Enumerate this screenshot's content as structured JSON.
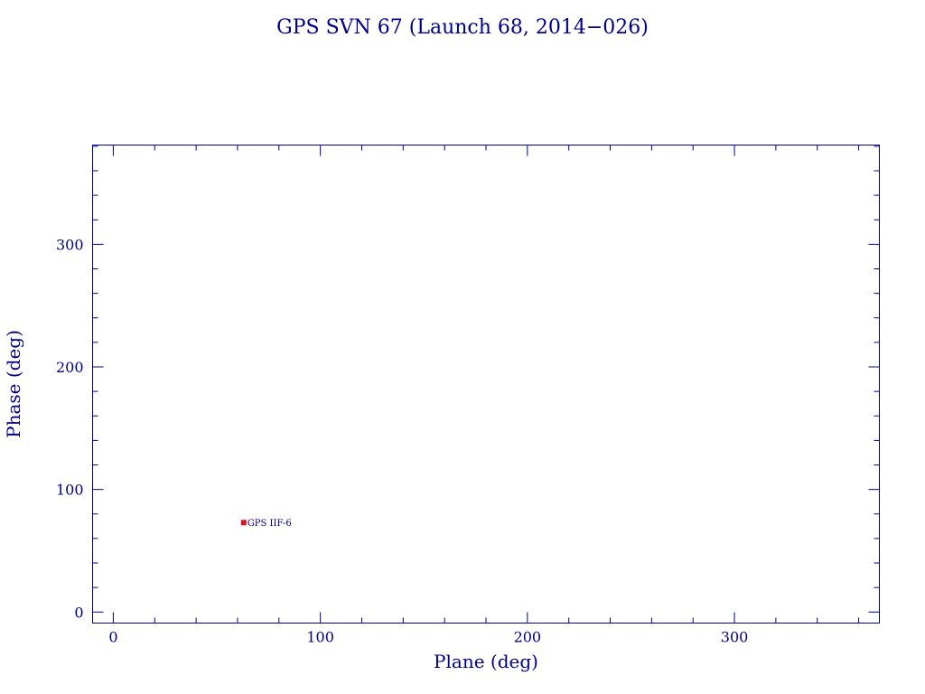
{
  "chart_data": {
    "type": "scatter",
    "title": "GPS SVN 67 (Launch 68, 2014−026)",
    "xlabel": "Plane (deg)",
    "ylabel": "Phase (deg)",
    "xlim": [
      -10,
      370
    ],
    "ylim": [
      -9,
      381
    ],
    "xticks": [
      0,
      100,
      200,
      300
    ],
    "xtick_labels": [
      "0",
      "100",
      "200",
      "300"
    ],
    "yticks": [
      0,
      100,
      200,
      300
    ],
    "ytick_labels": [
      "0",
      "100",
      "200",
      "300"
    ],
    "x_minor_step": 20,
    "y_minor_step": 20,
    "grid": false,
    "points": [
      {
        "x": 63,
        "y": 73,
        "label": "GPS IIF-6"
      }
    ],
    "colors": {
      "axis": "#00008b",
      "marker": "#e0141e"
    }
  }
}
